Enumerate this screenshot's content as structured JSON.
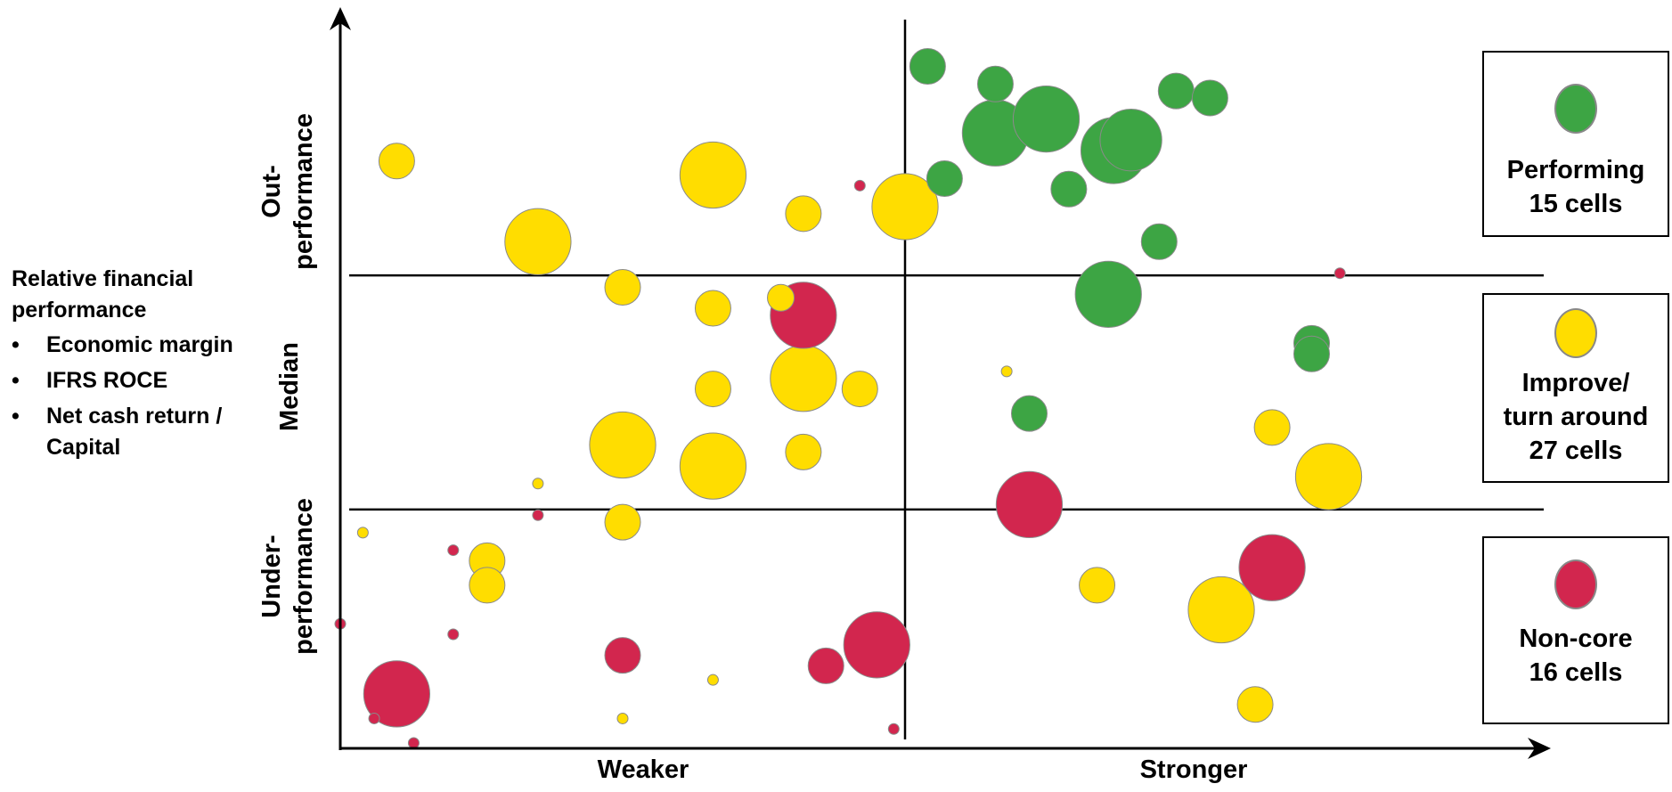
{
  "side_panel": {
    "title": "Relative financial performance",
    "bullet_char": "•",
    "items": [
      "Economic margin",
      "IFRS ROCE",
      "Net cash return / Capital"
    ]
  },
  "y_axis": {
    "bands": [
      "Out-\nperformance",
      "Median",
      "Under-\nperformance"
    ]
  },
  "x_axis": {
    "labels": [
      "Weaker",
      "Stronger"
    ]
  },
  "legend": [
    {
      "label": "Performing\n15 cells",
      "color": "#3da544"
    },
    {
      "label": "Improve/\nturn around\n27 cells",
      "color": "#ffdd00"
    },
    {
      "label": "Non-core\n16 cells",
      "color": "#d2264e"
    }
  ],
  "colors": {
    "green": "#3da544",
    "yellow": "#ffdd00",
    "red": "#d2264e",
    "bubble_outline": "#8a8a8a",
    "axis": "#000000"
  },
  "chart_data": {
    "type": "scatter",
    "subtype": "bubble",
    "x_scale": "relative (Weaker → Stronger)",
    "y_scale": "relative financial performance (Under-performance → Out-performance)",
    "x_range": [
      0,
      100
    ],
    "y_range": [
      0,
      100
    ],
    "vertical_divider_x": 50,
    "horizontal_dividers_y": [
      33.3,
      66.7
    ],
    "series": [
      {
        "name": "Performing",
        "color": "#3da544",
        "points": [
          {
            "x": 52,
            "y": 96.5,
            "size": 40
          },
          {
            "x": 58,
            "y": 94,
            "size": 40
          },
          {
            "x": 58,
            "y": 87,
            "size": 75
          },
          {
            "x": 62.5,
            "y": 89,
            "size": 75
          },
          {
            "x": 70,
            "y": 86,
            "size": 70
          },
          {
            "x": 68.5,
            "y": 84.5,
            "size": 75
          },
          {
            "x": 74,
            "y": 93,
            "size": 40
          },
          {
            "x": 77,
            "y": 92,
            "size": 40
          },
          {
            "x": 53.5,
            "y": 80.5,
            "size": 40
          },
          {
            "x": 64.5,
            "y": 79,
            "size": 40
          },
          {
            "x": 72.5,
            "y": 71.5,
            "size": 40
          },
          {
            "x": 68,
            "y": 64,
            "size": 75
          },
          {
            "x": 86,
            "y": 57,
            "size": 40
          },
          {
            "x": 86,
            "y": 55.5,
            "size": 40
          },
          {
            "x": 61,
            "y": 47,
            "size": 40
          }
        ]
      },
      {
        "name": "Improve/ turn around",
        "color": "#ffdd00",
        "points": [
          {
            "x": 5,
            "y": 83,
            "size": 40
          },
          {
            "x": 33,
            "y": 81,
            "size": 75
          },
          {
            "x": 41,
            "y": 75.5,
            "size": 40
          },
          {
            "x": 50,
            "y": 76.5,
            "size": 75
          },
          {
            "x": 17.5,
            "y": 71.5,
            "size": 75
          },
          {
            "x": 25,
            "y": 65,
            "size": 40
          },
          {
            "x": 33,
            "y": 62,
            "size": 40
          },
          {
            "x": 39,
            "y": 63.5,
            "size": 30
          },
          {
            "x": 41,
            "y": 52,
            "size": 75
          },
          {
            "x": 33,
            "y": 50.5,
            "size": 40
          },
          {
            "x": 46,
            "y": 50.5,
            "size": 40
          },
          {
            "x": 25,
            "y": 42.5,
            "size": 75
          },
          {
            "x": 33,
            "y": 39.5,
            "size": 75
          },
          {
            "x": 41,
            "y": 41.5,
            "size": 40
          },
          {
            "x": 59,
            "y": 53,
            "size": 12
          },
          {
            "x": 82.5,
            "y": 45,
            "size": 40
          },
          {
            "x": 87.5,
            "y": 38,
            "size": 75
          },
          {
            "x": 17.5,
            "y": 37,
            "size": 12
          },
          {
            "x": 25,
            "y": 31.5,
            "size": 40
          },
          {
            "x": 2,
            "y": 30,
            "size": 12
          },
          {
            "x": 13,
            "y": 26,
            "size": 40
          },
          {
            "x": 13,
            "y": 22.5,
            "size": 40
          },
          {
            "x": 33,
            "y": 9,
            "size": 12
          },
          {
            "x": 25,
            "y": 3.5,
            "size": 12
          },
          {
            "x": 67,
            "y": 22.5,
            "size": 40
          },
          {
            "x": 78,
            "y": 19,
            "size": 75
          },
          {
            "x": 81,
            "y": 5.5,
            "size": 40
          }
        ]
      },
      {
        "name": "Non-core",
        "color": "#d2264e",
        "points": [
          {
            "x": 46,
            "y": 79.5,
            "size": 12
          },
          {
            "x": 88.5,
            "y": 67,
            "size": 12
          },
          {
            "x": 41,
            "y": 61,
            "size": 75
          },
          {
            "x": 61,
            "y": 34,
            "size": 75
          },
          {
            "x": 17.5,
            "y": 32.5,
            "size": 12
          },
          {
            "x": 10,
            "y": 27.5,
            "size": 12
          },
          {
            "x": 0,
            "y": 17,
            "size": 12
          },
          {
            "x": 10,
            "y": 15.5,
            "size": 12
          },
          {
            "x": 25,
            "y": 12.5,
            "size": 40
          },
          {
            "x": 43,
            "y": 11,
            "size": 40
          },
          {
            "x": 47.5,
            "y": 14,
            "size": 75
          },
          {
            "x": 5,
            "y": 7,
            "size": 75
          },
          {
            "x": 3,
            "y": 3.5,
            "size": 12
          },
          {
            "x": 6.5,
            "y": 0,
            "size": 12
          },
          {
            "x": 49,
            "y": 2,
            "size": 12
          },
          {
            "x": 82.5,
            "y": 25,
            "size": 75
          }
        ]
      }
    ]
  }
}
